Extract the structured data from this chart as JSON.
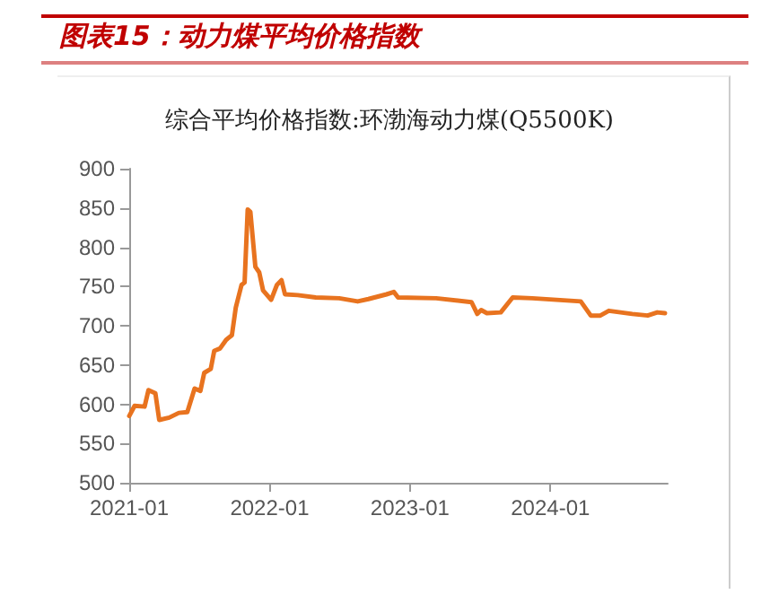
{
  "chart_data": {
    "type": "line",
    "title": "图表15：动力煤平均价格指数",
    "subtitle": "综合平均价格指数:环渤海动力煤(Q5500K)",
    "x": [
      "2021-01-01",
      "2021-01-15",
      "2021-02-10",
      "2021-02-20",
      "2021-03-10",
      "2021-03-20",
      "2021-04-15",
      "2021-05-10",
      "2021-06-01",
      "2021-06-20",
      "2021-07-05",
      "2021-07-15",
      "2021-08-01",
      "2021-08-10",
      "2021-08-25",
      "2021-09-10",
      "2021-09-25",
      "2021-10-05",
      "2021-10-20",
      "2021-10-28",
      "2021-11-05",
      "2021-11-12",
      "2021-11-25",
      "2021-12-05",
      "2021-12-15",
      "2022-01-05",
      "2022-01-20",
      "2022-02-01",
      "2022-02-10",
      "2022-03-15",
      "2022-05-01",
      "2022-07-01",
      "2022-08-18",
      "2022-09-15",
      "2022-11-01",
      "2022-11-20",
      "2022-12-01",
      "2023-03-10",
      "2023-06-10",
      "2023-06-25",
      "2023-07-05",
      "2023-07-20",
      "2023-08-25",
      "2023-09-25",
      "2023-11-15",
      "2024-03-20",
      "2024-04-15",
      "2024-05-10",
      "2024-06-01",
      "2024-08-01",
      "2024-09-10",
      "2024-10-05",
      "2024-10-25"
    ],
    "series": [
      {
        "color": "#e8731f",
        "values": [
          585,
          598,
          597,
          618,
          614,
          580,
          583,
          589,
          590,
          620,
          617,
          640,
          645,
          668,
          671,
          682,
          688,
          723,
          752,
          755,
          848,
          845,
          775,
          768,
          745,
          733,
          752,
          758,
          740,
          739,
          736,
          735,
          731,
          734,
          740,
          743,
          736,
          735,
          730,
          715,
          720,
          716,
          717,
          736,
          735,
          731,
          713,
          713,
          719,
          715,
          713,
          717,
          716
        ]
      }
    ],
    "xlim": [
      "2021-01-01",
      "2024-11-01"
    ],
    "xticks": [
      "2021-01",
      "2022-01",
      "2023-01",
      "2024-01"
    ],
    "ylim": [
      500,
      900
    ],
    "yticks": [
      500,
      550,
      600,
      650,
      700,
      750,
      800,
      850,
      900
    ],
    "grid": false,
    "marker": "none",
    "line_style": "solid"
  }
}
